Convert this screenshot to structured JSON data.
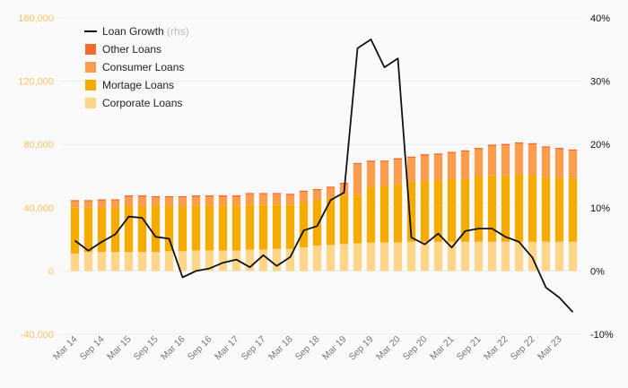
{
  "chart_data": {
    "type": "bar",
    "stacked": true,
    "title": "",
    "xlabel": "",
    "ylabel": "",
    "ylim": [
      -40000,
      160000
    ],
    "yticks": [
      "160,000",
      "120,000",
      "80,000",
      "40,000",
      "0",
      "-40,000"
    ],
    "ylim_right": [
      -0.1,
      0.4
    ],
    "yticks_right": [
      "40%",
      "30%",
      "20%",
      "10%",
      "0%",
      "-10%"
    ],
    "grid": true,
    "legend_position": "top-left",
    "categories": [
      "Mar 14",
      "Jun 14",
      "Sep 14",
      "Dec 14",
      "Mar 15",
      "Jun 15",
      "Sep 15",
      "Dec 15",
      "Mar 16",
      "Jun 16",
      "Sep 16",
      "Dec 16",
      "Mar 17",
      "Jun 17",
      "Sep 17",
      "Dec 17",
      "Mar 18",
      "Jun 18",
      "Sep 18",
      "Dec 18",
      "Mar 19",
      "Jun 19",
      "Sep 19",
      "Dec 19",
      "Mar 20",
      "Jun 20",
      "Sep 20",
      "Dec 20",
      "Mar 21",
      "Jun 21",
      "Sep 21",
      "Dec 21",
      "Mar 22",
      "Jun 22",
      "Sep 22",
      "Dec 22",
      "Mar 23",
      "Jun 23"
    ],
    "x_tick_labels": [
      "Mar 14",
      "Sep 14",
      "Mar 15",
      "Sep 15",
      "Mar 16",
      "Sep 16",
      "Mar 17",
      "Sep 17",
      "Mar 18",
      "Sep 18",
      "Mar 19",
      "Sep 19",
      "Mar 20",
      "Sep 20",
      "Mar 21",
      "Sep 21",
      "Mar 22",
      "Sep 22",
      "Mar 23"
    ],
    "series": [
      {
        "name": "Corporate Loans",
        "axis": "left",
        "color": "#fdd68a",
        "values": [
          11000,
          12000,
          12000,
          12000,
          12000,
          12000,
          12000,
          12500,
          12500,
          13000,
          13000,
          13000,
          13000,
          13500,
          13500,
          14000,
          14000,
          15000,
          16000,
          16500,
          17000,
          17500,
          18000,
          18000,
          18000,
          18500,
          18500,
          18500,
          18500,
          18500,
          18500,
          18500,
          18500,
          18500,
          18500,
          18500,
          18500,
          18500
        ]
      },
      {
        "name": "Mortage Loans",
        "axis": "left",
        "color": "#f5ab00",
        "values": [
          29000,
          28000,
          28000,
          28000,
          29000,
          29000,
          29500,
          28500,
          28500,
          28500,
          28500,
          28500,
          28500,
          28500,
          28500,
          28000,
          28000,
          28000,
          29000,
          30000,
          31000,
          31000,
          35000,
          36000,
          37000,
          38000,
          38500,
          39000,
          39500,
          40000,
          41500,
          42000,
          42000,
          42500,
          42000,
          41000,
          40500,
          40500
        ]
      },
      {
        "name": "Consumer Loans",
        "axis": "left",
        "color": "#fb9d4c",
        "values": [
          4000,
          4000,
          4500,
          4500,
          6000,
          6000,
          5000,
          5500,
          5500,
          5500,
          5500,
          5500,
          5500,
          6500,
          6500,
          6500,
          6000,
          7000,
          6000,
          6000,
          7000,
          19000,
          16000,
          15000,
          15500,
          15000,
          16000,
          16000,
          16500,
          17000,
          17000,
          18500,
          19000,
          19500,
          19500,
          18500,
          18000,
          17000
        ]
      },
      {
        "name": "Other Loans",
        "axis": "left",
        "color": "#f26a2c",
        "values": [
          800,
          800,
          800,
          800,
          800,
          800,
          800,
          800,
          800,
          800,
          800,
          800,
          800,
          800,
          800,
          800,
          800,
          800,
          800,
          800,
          800,
          800,
          800,
          800,
          800,
          800,
          800,
          800,
          800,
          800,
          800,
          800,
          800,
          800,
          800,
          800,
          800,
          800
        ]
      },
      {
        "name": "Loan Growth",
        "suffix": "(rhs)",
        "type": "line",
        "axis": "right",
        "color": "#111111",
        "values": [
          0.048,
          0.032,
          0.046,
          0.058,
          0.086,
          0.084,
          0.054,
          0.051,
          -0.01,
          0.0,
          0.004,
          0.013,
          0.018,
          0.006,
          0.025,
          0.008,
          0.022,
          0.064,
          0.071,
          0.112,
          0.124,
          0.352,
          0.366,
          0.322,
          0.336,
          0.053,
          0.042,
          0.059,
          0.037,
          0.063,
          0.067,
          0.067,
          0.054,
          0.046,
          0.021,
          -0.026,
          -0.042,
          -0.065
        ]
      }
    ]
  }
}
